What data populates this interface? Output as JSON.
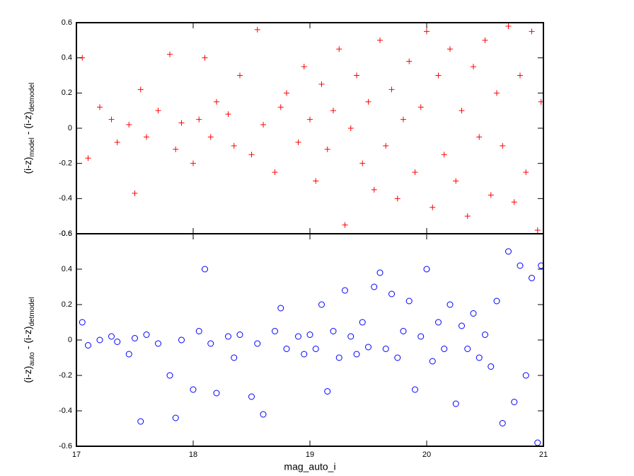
{
  "chart_data": [
    {
      "type": "scatter",
      "marker": "plus",
      "color": "#ff0000",
      "xtick_labels": false,
      "ylabel": [
        {
          "text": "(i-z)"
        },
        {
          "text": "model",
          "sub": true
        },
        {
          "text": " - (i-z)"
        },
        {
          "text": "detmodel",
          "sub": true
        }
      ],
      "xlim": [
        17,
        21
      ],
      "xticks": [
        17,
        18,
        19,
        20,
        21
      ],
      "ylim": [
        -0.6,
        0.6
      ],
      "yticks": [
        -0.6,
        -0.4,
        -0.2,
        0,
        0.2,
        0.4,
        0.6
      ],
      "x": [
        17.05,
        17.1,
        17.2,
        17.3,
        17.35,
        17.45,
        17.5,
        17.55,
        17.6,
        17.7,
        17.8,
        17.85,
        17.9,
        18.0,
        18.05,
        18.1,
        18.15,
        18.2,
        18.3,
        18.35,
        18.4,
        18.5,
        18.55,
        18.6,
        18.7,
        18.75,
        18.8,
        18.9,
        18.95,
        19.0,
        19.05,
        19.1,
        19.15,
        19.2,
        19.25,
        19.3,
        19.35,
        19.4,
        19.45,
        19.5,
        19.55,
        19.6,
        19.65,
        19.7,
        19.75,
        19.8,
        19.85,
        19.9,
        19.95,
        20.0,
        20.05,
        20.1,
        20.15,
        20.2,
        20.25,
        20.3,
        20.35,
        20.4,
        20.45,
        20.5,
        20.55,
        20.6,
        20.65,
        20.7,
        20.75,
        20.8,
        20.85,
        20.9,
        20.95,
        20.98
      ],
      "values": [
        0.4,
        -0.17,
        0.12,
        0.05,
        -0.08,
        0.02,
        -0.37,
        0.22,
        -0.05,
        0.1,
        0.42,
        -0.12,
        0.03,
        -0.2,
        0.05,
        0.4,
        -0.05,
        0.15,
        0.08,
        -0.1,
        0.3,
        -0.15,
        0.56,
        0.02,
        -0.25,
        0.12,
        0.2,
        -0.08,
        0.35,
        0.05,
        -0.3,
        0.25,
        -0.12,
        0.1,
        0.45,
        -0.55,
        0.0,
        0.3,
        -0.2,
        0.15,
        -0.35,
        0.5,
        -0.1,
        0.22,
        -0.4,
        0.05,
        0.38,
        -0.25,
        0.12,
        0.55,
        -0.45,
        0.3,
        -0.15,
        0.45,
        -0.3,
        0.1,
        -0.5,
        0.35,
        -0.05,
        0.5,
        -0.38,
        0.2,
        -0.1,
        0.58,
        -0.42,
        0.3,
        -0.25,
        0.55,
        -0.58,
        0.15
      ]
    },
    {
      "type": "scatter",
      "marker": "circle",
      "color": "#0000ff",
      "xtick_labels": true,
      "xlabel": "mag_auto_i",
      "ylabel": [
        {
          "text": "(i-z)"
        },
        {
          "text": "auto",
          "sub": true
        },
        {
          "text": " - (i-z)"
        },
        {
          "text": "detmodel",
          "sub": true
        }
      ],
      "xlim": [
        17,
        21
      ],
      "xticks": [
        17,
        18,
        19,
        20,
        21
      ],
      "ylim": [
        -0.6,
        0.6
      ],
      "yticks": [
        -0.6,
        -0.4,
        -0.2,
        0,
        0.2,
        0.4,
        0.6
      ],
      "x": [
        17.05,
        17.1,
        17.2,
        17.3,
        17.35,
        17.45,
        17.5,
        17.55,
        17.6,
        17.7,
        17.8,
        17.85,
        17.9,
        18.0,
        18.05,
        18.1,
        18.15,
        18.2,
        18.3,
        18.35,
        18.4,
        18.5,
        18.55,
        18.6,
        18.7,
        18.75,
        18.8,
        18.9,
        18.95,
        19.0,
        19.05,
        19.1,
        19.15,
        19.2,
        19.25,
        19.3,
        19.35,
        19.4,
        19.45,
        19.5,
        19.55,
        19.6,
        19.65,
        19.7,
        19.75,
        19.8,
        19.85,
        19.9,
        19.95,
        20.0,
        20.05,
        20.1,
        20.15,
        20.2,
        20.25,
        20.3,
        20.35,
        20.4,
        20.45,
        20.5,
        20.55,
        20.6,
        20.65,
        20.7,
        20.75,
        20.8,
        20.85,
        20.9,
        20.95,
        20.98
      ],
      "values": [
        0.1,
        -0.03,
        0.0,
        0.02,
        -0.01,
        -0.08,
        0.01,
        -0.46,
        0.03,
        -0.02,
        -0.2,
        -0.44,
        0.0,
        -0.28,
        0.05,
        0.4,
        -0.02,
        -0.3,
        0.02,
        -0.1,
        0.03,
        -0.32,
        -0.02,
        -0.42,
        0.05,
        0.18,
        -0.05,
        0.02,
        -0.08,
        0.03,
        -0.05,
        0.2,
        -0.29,
        0.05,
        -0.1,
        0.28,
        0.02,
        -0.08,
        0.1,
        -0.04,
        0.3,
        0.38,
        -0.05,
        0.26,
        -0.1,
        0.05,
        0.22,
        -0.28,
        0.02,
        0.4,
        -0.12,
        0.1,
        -0.05,
        0.2,
        -0.36,
        0.08,
        -0.05,
        0.15,
        -0.1,
        0.03,
        -0.15,
        0.22,
        -0.47,
        0.5,
        -0.35,
        0.42,
        -0.2,
        0.35,
        -0.58,
        0.42
      ]
    }
  ]
}
